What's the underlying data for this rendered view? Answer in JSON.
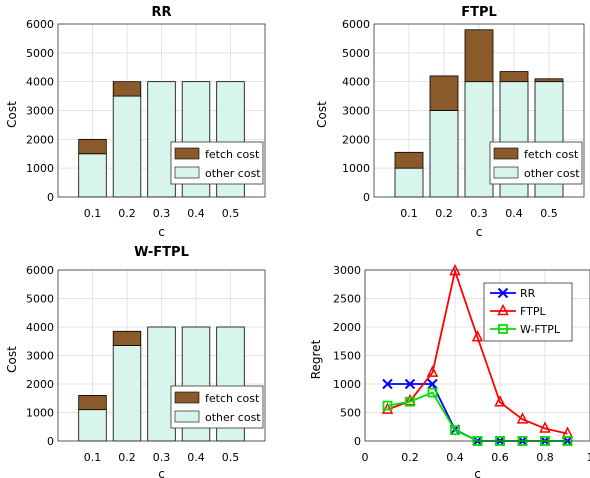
{
  "chart_data": [
    {
      "type": "bar",
      "title": "RR",
      "xlabel": "c",
      "ylabel": "Cost",
      "categories": [
        "0.1",
        "0.2",
        "0.3",
        "0.4",
        "0.5"
      ],
      "ylim": [
        0,
        6000
      ],
      "yticks": [
        "0",
        "1000",
        "2000",
        "3000",
        "4000",
        "5000",
        "6000"
      ],
      "stacked": true,
      "grid": true,
      "legend_position": "bottom-right",
      "series": [
        {
          "name": "other cost",
          "color": "#d7f5ec",
          "values": [
            1500,
            3500,
            4000,
            4000,
            4000
          ]
        },
        {
          "name": "fetch cost",
          "color": "#8b5a2b",
          "values": [
            500,
            500,
            0,
            0,
            0
          ]
        }
      ]
    },
    {
      "type": "bar",
      "title": "FTPL",
      "xlabel": "c",
      "ylabel": "Cost",
      "categories": [
        "0.1",
        "0.2",
        "0.3",
        "0.4",
        "0.5"
      ],
      "ylim": [
        0,
        6000
      ],
      "yticks": [
        "0",
        "1000",
        "2000",
        "3000",
        "4000",
        "5000",
        "6000"
      ],
      "stacked": true,
      "grid": true,
      "legend_position": "bottom-right",
      "series": [
        {
          "name": "other cost",
          "color": "#d7f5ec",
          "values": [
            1000,
            3000,
            4000,
            4000,
            4000
          ]
        },
        {
          "name": "fetch cost",
          "color": "#8b5a2b",
          "values": [
            550,
            1200,
            1800,
            350,
            100
          ]
        }
      ]
    },
    {
      "type": "bar",
      "title": "W-FTPL",
      "xlabel": "c",
      "ylabel": "Cost",
      "categories": [
        "0.1",
        "0.2",
        "0.3",
        "0.4",
        "0.5"
      ],
      "ylim": [
        0,
        6000
      ],
      "yticks": [
        "0",
        "1000",
        "2000",
        "3000",
        "4000",
        "5000",
        "6000"
      ],
      "stacked": true,
      "grid": true,
      "legend_position": "bottom-right",
      "series": [
        {
          "name": "other cost",
          "color": "#d7f5ec",
          "values": [
            1100,
            3350,
            4000,
            4000,
            4000
          ]
        },
        {
          "name": "fetch cost",
          "color": "#8b5a2b",
          "values": [
            500,
            500,
            0,
            0,
            0
          ]
        }
      ]
    },
    {
      "type": "line",
      "title": "",
      "xlabel": "c",
      "ylabel": "Regret",
      "xlim": [
        0,
        1
      ],
      "ylim": [
        0,
        3000
      ],
      "xticks": [
        "0",
        "0.2",
        "0.4",
        "0.6",
        "0.8",
        "1"
      ],
      "yticks": [
        "0",
        "500",
        "1000",
        "1500",
        "2000",
        "2500",
        "3000"
      ],
      "grid": true,
      "legend_position": "top-right",
      "series": [
        {
          "name": "RR",
          "color": "#0000ff",
          "marker": "x",
          "x": [
            0.1,
            0.2,
            0.3,
            0.4,
            0.5,
            0.6,
            0.7,
            0.8,
            0.9
          ],
          "y": [
            1000,
            1000,
            1000,
            200,
            0,
            0,
            0,
            0,
            0
          ]
        },
        {
          "name": "FTPL",
          "color": "#ff0000",
          "marker": "triangle",
          "x": [
            0.1,
            0.2,
            0.3,
            0.4,
            0.5,
            0.6,
            0.7,
            0.8,
            0.9
          ],
          "y": [
            550,
            700,
            1200,
            2980,
            1820,
            680,
            380,
            220,
            130
          ]
        },
        {
          "name": "W-FTPL",
          "color": "#00e000",
          "marker": "square",
          "x": [
            0.1,
            0.2,
            0.3,
            0.4,
            0.5,
            0.6,
            0.7,
            0.8,
            0.9
          ],
          "y": [
            620,
            690,
            850,
            190,
            0,
            0,
            0,
            0,
            0
          ]
        }
      ]
    }
  ]
}
